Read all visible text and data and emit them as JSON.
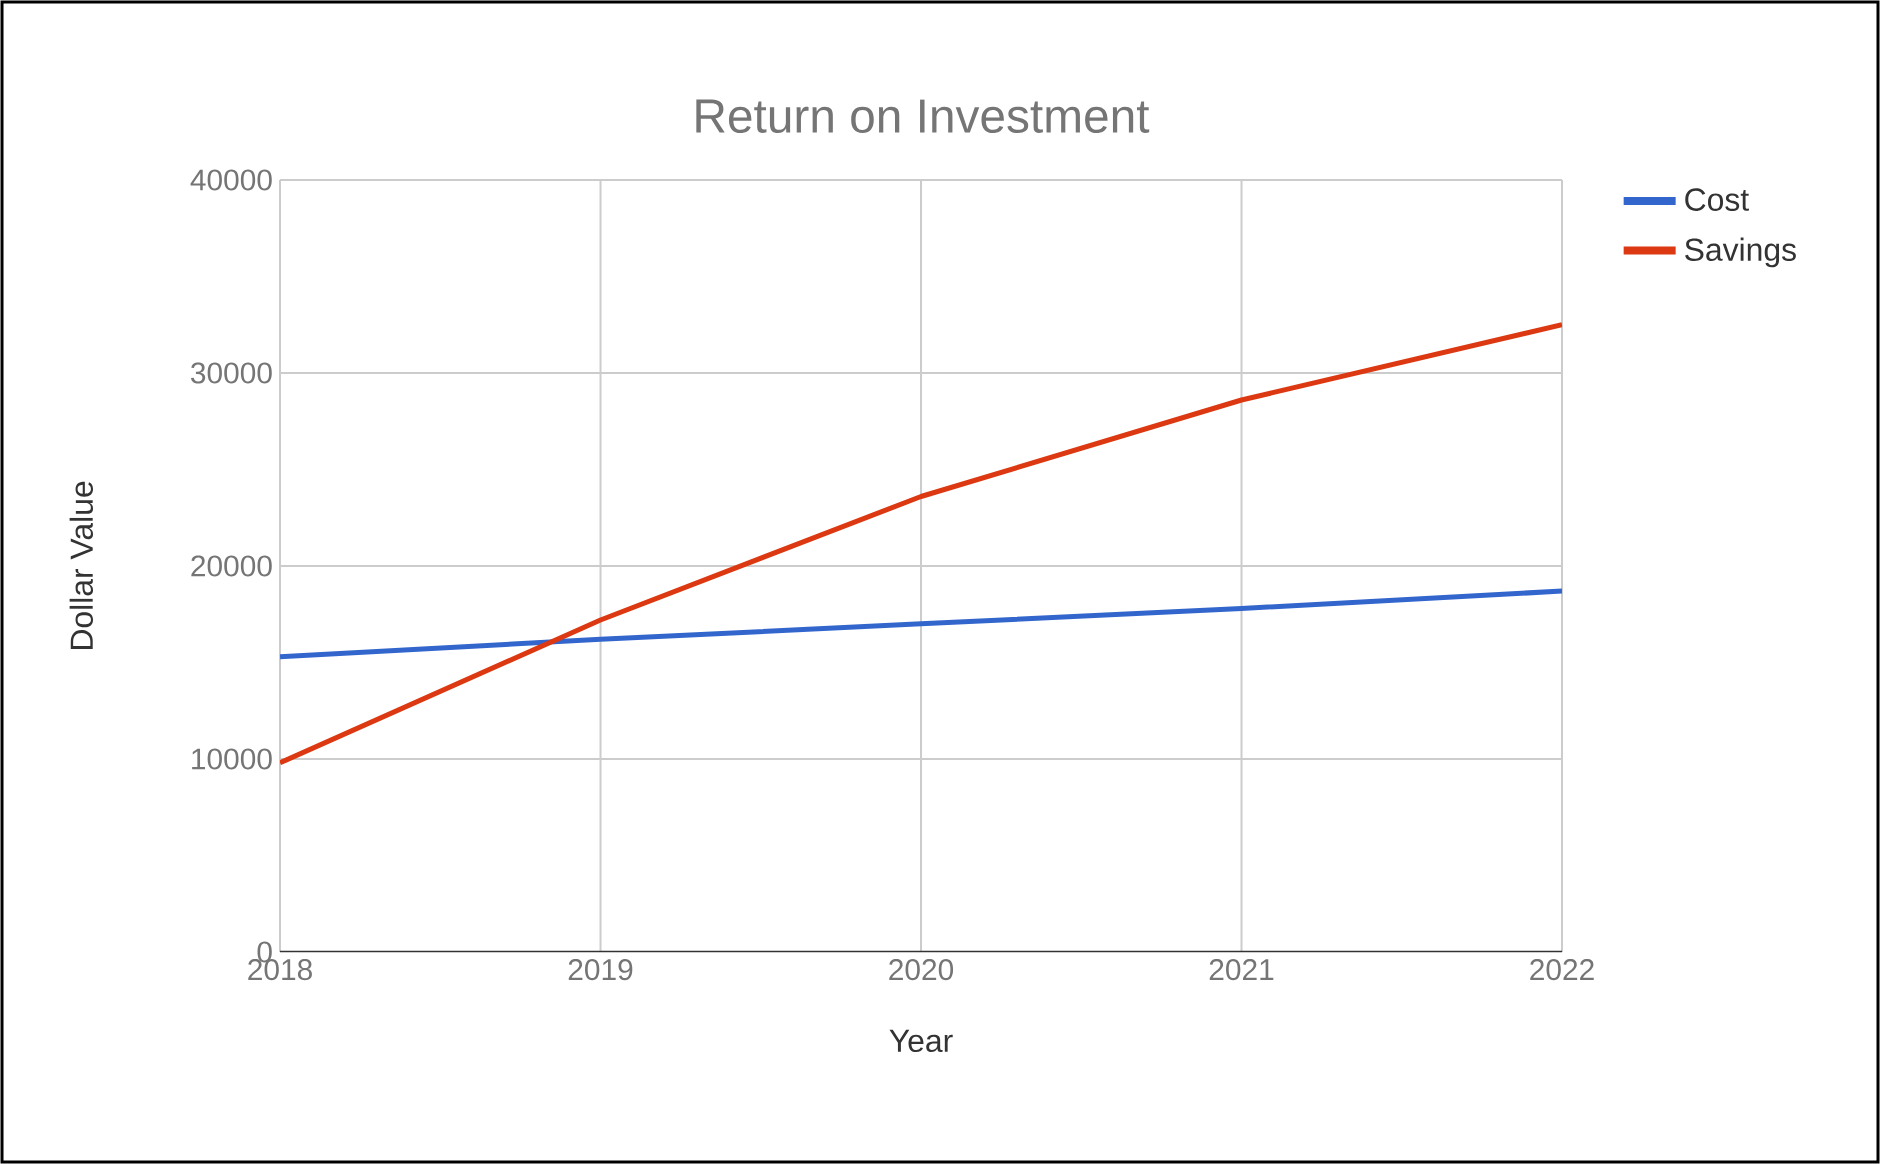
{
  "chart_data": {
    "type": "line",
    "title": "Return on Investment",
    "xlabel": "Year",
    "ylabel": "Dollar Value",
    "x": [
      2018,
      2019,
      2020,
      2021,
      2022
    ],
    "series": [
      {
        "name": "Cost",
        "color": "#3366cc",
        "values": [
          15300,
          16200,
          17000,
          17800,
          18700
        ]
      },
      {
        "name": "Savings",
        "color": "#dc3912",
        "values": [
          9800,
          17200,
          23600,
          28600,
          32500
        ]
      }
    ],
    "xlim": [
      2018,
      2022
    ],
    "xticks": [
      2018,
      2019,
      2020,
      2021,
      2022
    ],
    "ylim": [
      0,
      40000
    ],
    "yticks": [
      0,
      10000,
      20000,
      30000,
      40000
    ],
    "grid": true,
    "legend": "top right"
  }
}
